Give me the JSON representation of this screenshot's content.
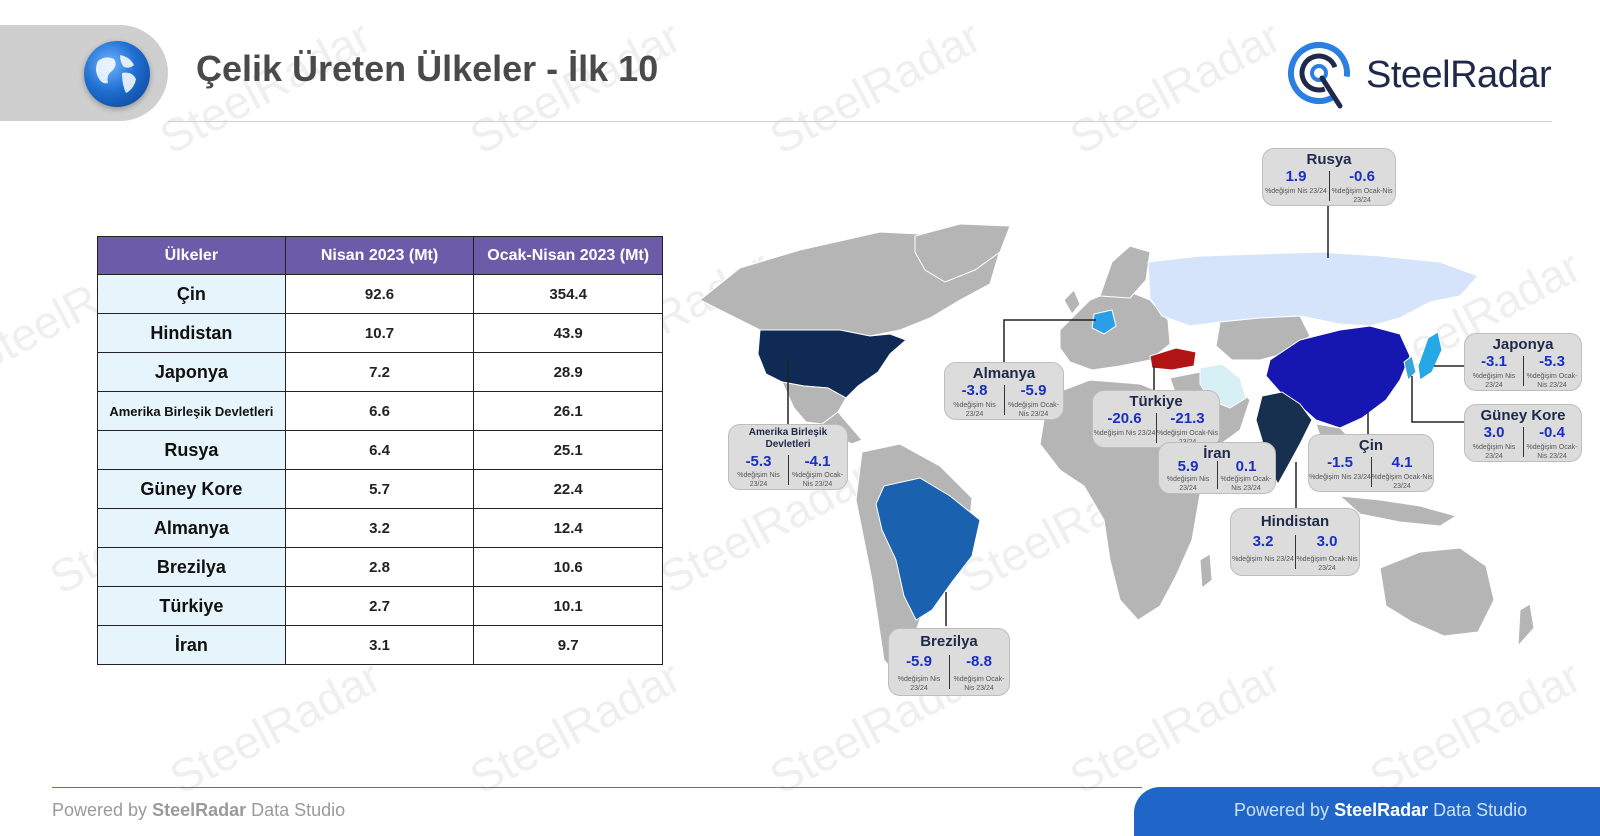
{
  "header": {
    "title": "Çelik Üreten Ülkeler - İlk 10",
    "logo_text": "SteelRadar",
    "watermark": "SteelRadar"
  },
  "chart_data": [
    {
      "type": "table",
      "columns": [
        "Ülkeler",
        "Nisan 2023 (Mt)",
        "Ocak-Nisan 2023 (Mt)"
      ],
      "rows": [
        [
          "Çin",
          "92.6",
          "354.4"
        ],
        [
          "Hindistan",
          "10.7",
          "43.9"
        ],
        [
          "Japonya",
          "7.2",
          "28.9"
        ],
        [
          "Amerika Birleşik Devletleri",
          "6.6",
          "26.1"
        ],
        [
          "Rusya",
          "6.4",
          "25.1"
        ],
        [
          "Güney Kore",
          "5.7",
          "22.4"
        ],
        [
          "Almanya",
          "3.2",
          "12.4"
        ],
        [
          "Brezilya",
          "2.8",
          "10.6"
        ],
        [
          "Türkiye",
          "2.7",
          "10.1"
        ],
        [
          "İran",
          "3.1",
          "9.7"
        ]
      ]
    },
    {
      "type": "map",
      "label_left": "%değişim Nis 23/24",
      "label_right": "%değişim Ocak-Nis 23/24",
      "callouts": [
        {
          "country": "Rusya",
          "monthly": "1.9",
          "ytd": "-0.6"
        },
        {
          "country": "Japonya",
          "monthly": "-3.1",
          "ytd": "-5.3"
        },
        {
          "country": "Almanya",
          "monthly": "-3.8",
          "ytd": "-5.9"
        },
        {
          "country": "Türkiye",
          "monthly": "-20.6",
          "ytd": "-21.3"
        },
        {
          "country": "Güney Kore",
          "monthly": "3.0",
          "ytd": "-0.4"
        },
        {
          "country": "Amerika Birleşik Devletleri",
          "monthly": "-5.3",
          "ytd": "-4.1"
        },
        {
          "country": "İran",
          "monthly": "5.9",
          "ytd": "0.1"
        },
        {
          "country": "Çin",
          "monthly": "-1.5",
          "ytd": "4.1"
        },
        {
          "country": "Hindistan",
          "monthly": "3.2",
          "ytd": "3.0"
        },
        {
          "country": "Brezilya",
          "monthly": "-5.9",
          "ytd": "-8.8"
        }
      ],
      "colors": {
        "land": "#b5b5b5",
        "usa": "#0f2a55",
        "china": "#1616b0",
        "india": "#17304f",
        "russia": "#d6e4fb",
        "brazil": "#1a62b0",
        "turkey": "#b01414",
        "iran": "#d6f0f6",
        "japan": "#27a8e6",
        "korea": "#3aa3d9",
        "germany": "#2b9fe6"
      }
    }
  ],
  "footer": {
    "prefix": "Powered by ",
    "brand": "SteelRadar",
    "suffix": " Data Studio"
  }
}
